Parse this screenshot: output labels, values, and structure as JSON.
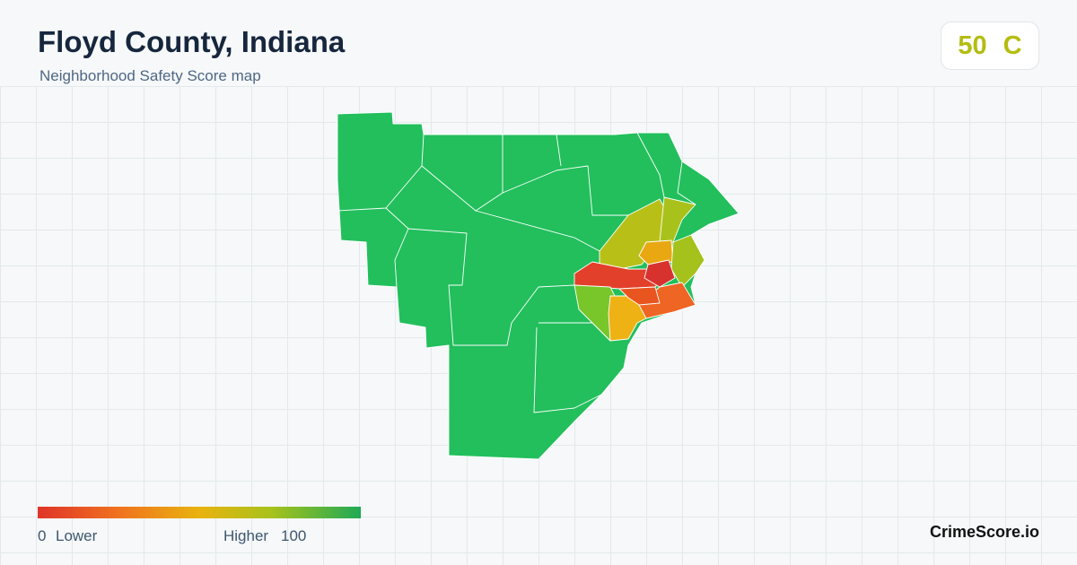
{
  "header": {
    "title": "Floyd County, Indiana",
    "subtitle": "Neighborhood Safety Score map"
  },
  "score": {
    "value": 50,
    "grade": "C"
  },
  "legend": {
    "min": 0,
    "min_label": "Lower",
    "max_label": "Higher",
    "max": 100
  },
  "brand": "CrimeScore.io"
}
